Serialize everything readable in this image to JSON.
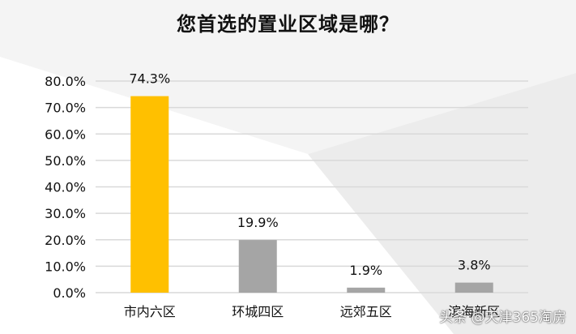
{
  "chart_data": {
    "type": "bar",
    "title": "您首选的置业区域是哪？",
    "categories": [
      "市内六区",
      "环城四区",
      "远郊五区",
      "滨海新区"
    ],
    "values": [
      74.3,
      19.9,
      1.9,
      3.8
    ],
    "value_labels": [
      "74.3%",
      "19.9%",
      "1.9%",
      "3.8%"
    ],
    "yticks": [
      "0.0%",
      "10.0%",
      "20.0%",
      "30.0%",
      "40.0%",
      "50.0%",
      "60.0%",
      "70.0%",
      "80.0%"
    ],
    "ylim": [
      0,
      80
    ],
    "grid": true,
    "colors": [
      "#FFC000",
      "#A5A5A5",
      "#A5A5A5",
      "#A5A5A5"
    ]
  },
  "watermark": "头条 @天津365淘房"
}
